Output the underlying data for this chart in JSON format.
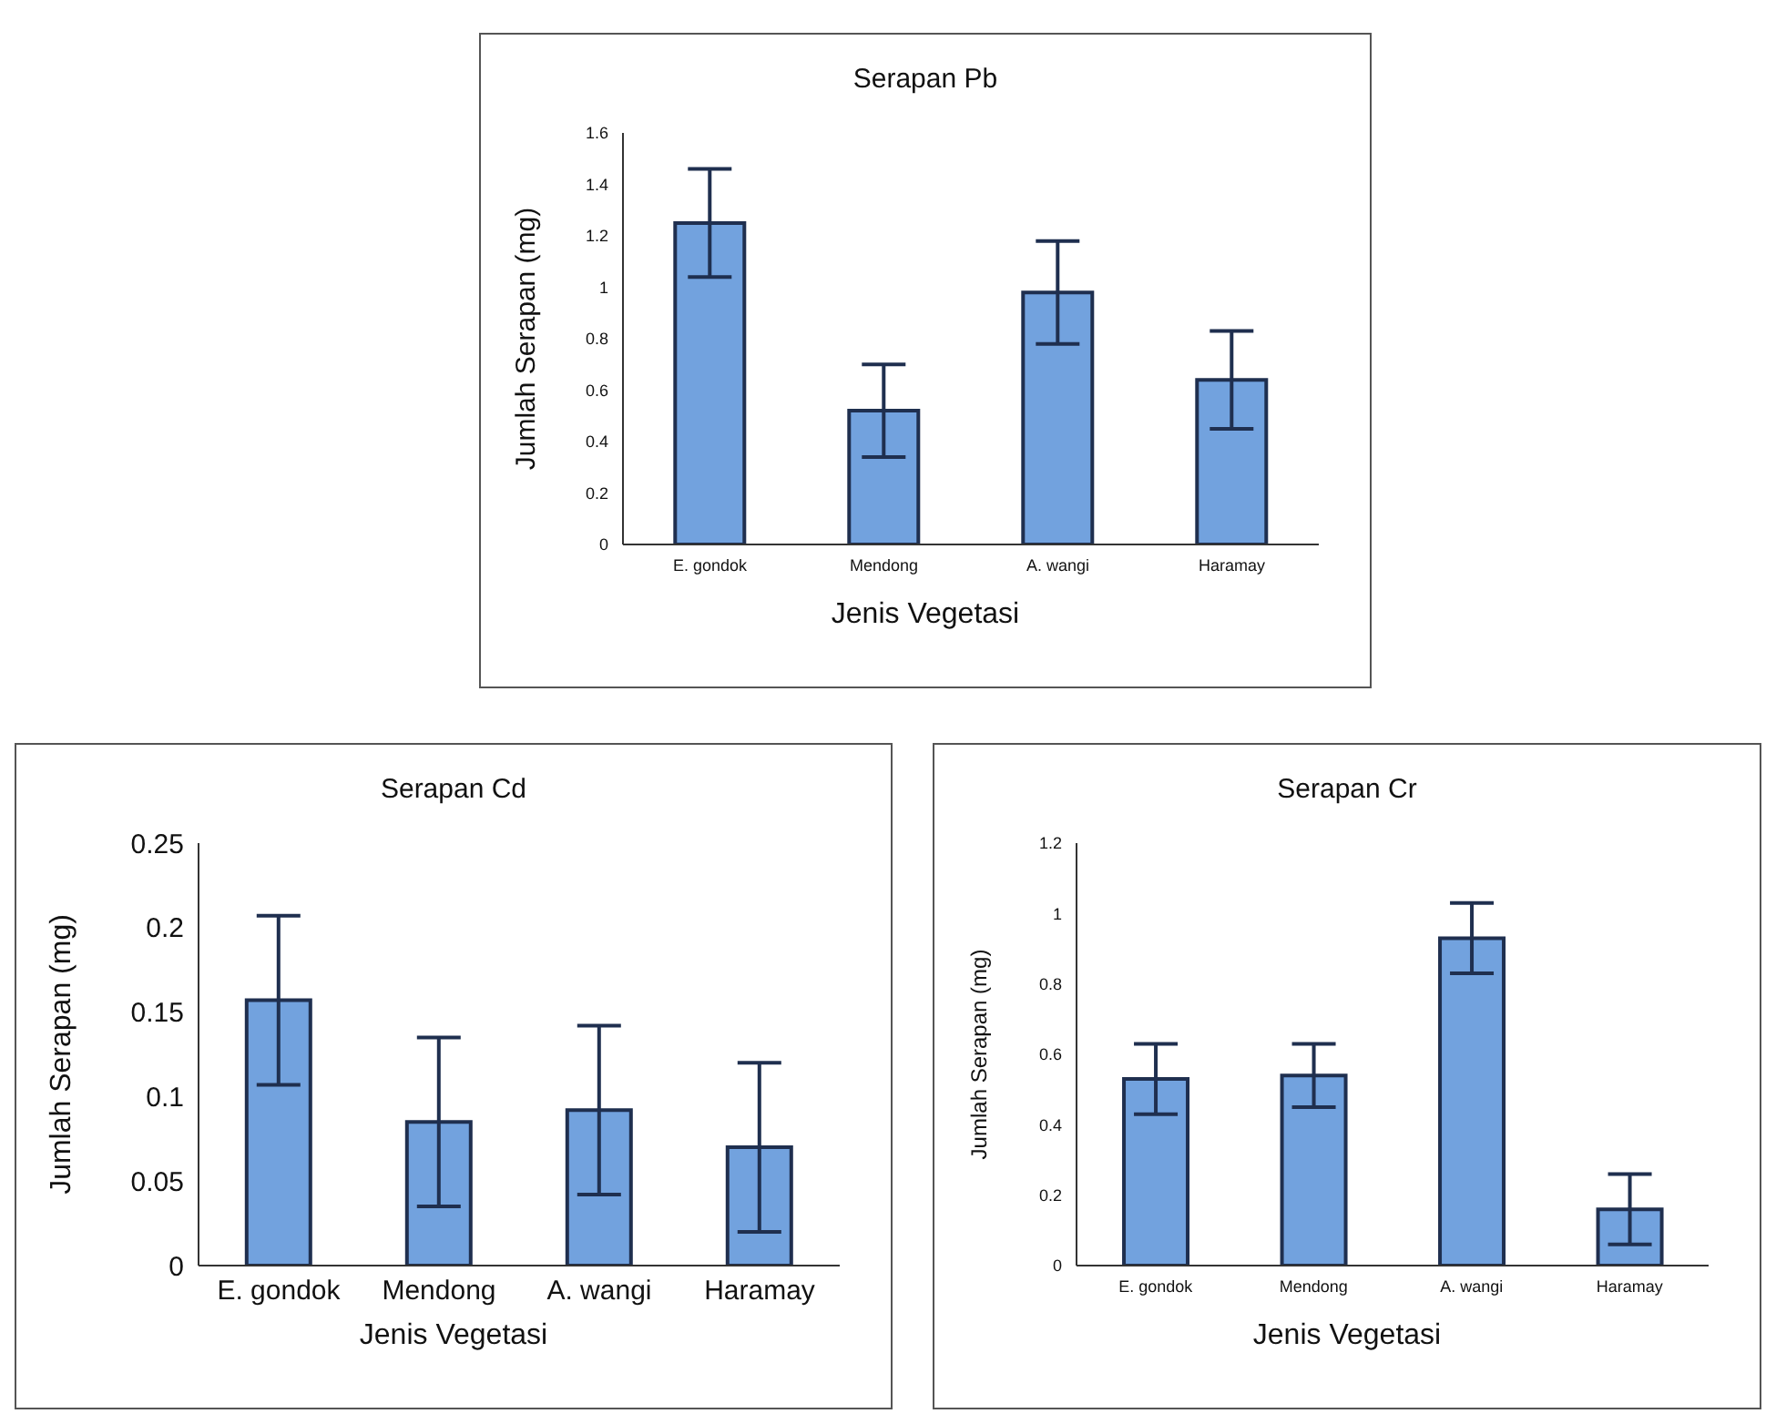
{
  "chart_data": [
    {
      "type": "bar",
      "title": "Serapan Pb",
      "xlabel": "Jenis Vegetasi",
      "ylabel": "Jumlah Serapan (mg)",
      "categories": [
        "E. gondok",
        "Mendong",
        "A. wangi",
        "Haramay"
      ],
      "values": [
        1.25,
        0.52,
        0.98,
        0.64
      ],
      "errors": [
        0.21,
        0.18,
        0.2,
        0.19
      ],
      "color": "#72a2de",
      "ylim": [
        0,
        1.6
      ],
      "yticks": [
        0,
        0.2,
        0.4,
        0.6,
        0.8,
        1,
        1.2,
        1.4,
        1.6
      ]
    },
    {
      "type": "bar",
      "title": "Serapan Cd",
      "xlabel": "Jenis Vegetasi",
      "ylabel": "Jumlah Serapan (mg)",
      "categories": [
        "E. gondok",
        "Mendong",
        "A. wangi",
        "Haramay"
      ],
      "values": [
        0.157,
        0.085,
        0.092,
        0.07
      ],
      "errors": [
        0.05,
        0.05,
        0.05,
        0.05
      ],
      "color": "#72a2de",
      "ylim": [
        0,
        0.25
      ],
      "yticks": [
        0,
        0.05,
        0.1,
        0.15,
        0.2,
        0.25
      ]
    },
    {
      "type": "bar",
      "title": "Serapan Cr",
      "xlabel": "Jenis Vegetasi",
      "ylabel": "Jumlah Serapan (mg)",
      "categories": [
        "E. gondok",
        "Mendong",
        "A. wangi",
        "Haramay"
      ],
      "values": [
        0.53,
        0.54,
        0.93,
        0.16
      ],
      "errors": [
        0.1,
        0.09,
        0.1,
        0.1
      ],
      "color": "#72a2de",
      "ylim": [
        0,
        1.2
      ],
      "yticks": [
        0,
        0.2,
        0.4,
        0.6,
        0.8,
        1,
        1.2
      ]
    }
  ]
}
